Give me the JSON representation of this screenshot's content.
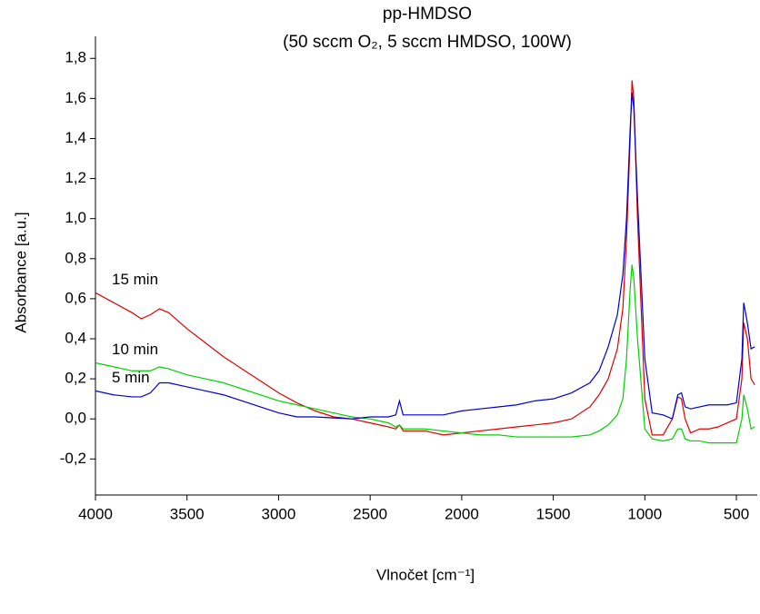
{
  "chart_data": {
    "type": "line",
    "title": "pp-HMDSO",
    "subtitle": "(50 sccm O₂, 5 sccm HMDSO, 100W)",
    "xlabel": "Vlnočet [cm⁻¹]",
    "ylabel": "Absorbance [a.u.]",
    "x": [
      4000,
      3900,
      3800,
      3750,
      3700,
      3650,
      3600,
      3500,
      3400,
      3300,
      3200,
      3100,
      3000,
      2900,
      2800,
      2700,
      2600,
      2500,
      2400,
      2360,
      2340,
      2320,
      2300,
      2200,
      2100,
      2000,
      1900,
      1800,
      1700,
      1600,
      1500,
      1400,
      1300,
      1250,
      1200,
      1150,
      1120,
      1100,
      1080,
      1070,
      1060,
      1040,
      1000,
      960,
      900,
      850,
      820,
      800,
      780,
      750,
      700,
      650,
      600,
      550,
      500,
      470,
      460,
      440,
      420,
      400
    ],
    "series": [
      {
        "name": "15 min",
        "color": "#e00000",
        "values": [
          0.63,
          0.58,
          0.53,
          0.5,
          0.52,
          0.55,
          0.53,
          0.45,
          0.38,
          0.31,
          0.25,
          0.19,
          0.13,
          0.08,
          0.04,
          0.01,
          0.0,
          -0.02,
          -0.04,
          -0.05,
          -0.03,
          -0.06,
          -0.06,
          -0.06,
          -0.08,
          -0.07,
          -0.06,
          -0.05,
          -0.04,
          -0.03,
          -0.02,
          0.0,
          0.06,
          0.12,
          0.2,
          0.35,
          0.55,
          0.9,
          1.4,
          1.69,
          1.6,
          1.0,
          0.1,
          -0.08,
          -0.08,
          0.0,
          0.11,
          0.1,
          0.0,
          -0.07,
          -0.05,
          -0.05,
          -0.04,
          -0.02,
          0.0,
          0.2,
          0.48,
          0.4,
          0.2,
          0.17
        ]
      },
      {
        "name": "10 min",
        "color": "#00d000",
        "values": [
          0.28,
          0.26,
          0.24,
          0.24,
          0.24,
          0.26,
          0.25,
          0.22,
          0.2,
          0.18,
          0.15,
          0.12,
          0.09,
          0.07,
          0.05,
          0.03,
          0.01,
          0.0,
          -0.02,
          -0.04,
          -0.03,
          -0.05,
          -0.05,
          -0.05,
          -0.06,
          -0.07,
          -0.08,
          -0.08,
          -0.09,
          -0.09,
          -0.09,
          -0.09,
          -0.08,
          -0.06,
          -0.03,
          0.02,
          0.1,
          0.3,
          0.65,
          0.77,
          0.7,
          0.4,
          -0.05,
          -0.1,
          -0.11,
          -0.1,
          -0.05,
          -0.05,
          -0.1,
          -0.11,
          -0.11,
          -0.12,
          -0.12,
          -0.12,
          -0.12,
          0.0,
          0.12,
          0.05,
          -0.05,
          -0.04
        ]
      },
      {
        "name": "5 min",
        "color": "#0000d0",
        "values": [
          0.14,
          0.12,
          0.11,
          0.11,
          0.13,
          0.18,
          0.18,
          0.16,
          0.14,
          0.12,
          0.09,
          0.06,
          0.03,
          0.01,
          0.01,
          0.005,
          0.0,
          0.01,
          0.01,
          0.02,
          0.09,
          0.02,
          0.02,
          0.02,
          0.02,
          0.04,
          0.05,
          0.06,
          0.07,
          0.09,
          0.1,
          0.13,
          0.18,
          0.24,
          0.36,
          0.52,
          0.72,
          1.0,
          1.45,
          1.63,
          1.55,
          1.1,
          0.3,
          0.03,
          0.02,
          0.0,
          0.12,
          0.13,
          0.06,
          0.05,
          0.06,
          0.07,
          0.07,
          0.07,
          0.08,
          0.3,
          0.58,
          0.48,
          0.35,
          0.36
        ]
      }
    ],
    "xlim": [
      4000,
      386
    ],
    "xticks": [
      4000,
      3500,
      3000,
      2500,
      2000,
      1500,
      1000,
      500
    ],
    "ylim": [
      -0.38,
      1.91
    ],
    "yticks": [
      {
        "value": -0.2,
        "label": "-0,2"
      },
      {
        "value": 0,
        "label": "0,0"
      },
      {
        "value": 0.2,
        "label": "0,2"
      },
      {
        "value": 0.4,
        "label": "0,4"
      },
      {
        "value": 0.6,
        "label": "0,6"
      },
      {
        "value": 0.8,
        "label": "0,8"
      },
      {
        "value": 1.0,
        "label": "1,0"
      },
      {
        "value": 1.2,
        "label": "1,2"
      },
      {
        "value": 1.4,
        "label": "1,4"
      },
      {
        "value": 1.6,
        "label": "1,6"
      },
      {
        "value": 1.8,
        "label": "1,8"
      }
    ],
    "grid": false
  }
}
